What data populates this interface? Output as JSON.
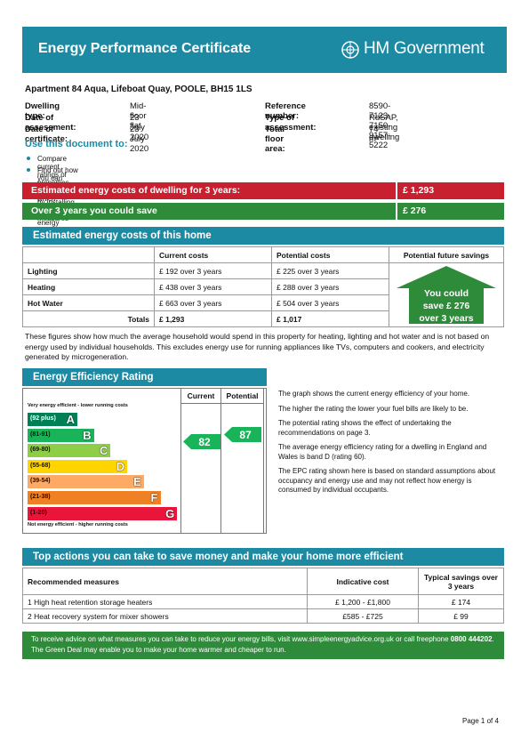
{
  "header": {
    "title": "Energy Performance Certificate",
    "logo": "HM Government"
  },
  "property": {
    "address": "Apartment 84 Aqua, Lifeboat Quay, POOLE, BH15 1LS",
    "details": [
      {
        "label": "Dwelling type:",
        "value": "Mid-floor flat"
      },
      {
        "label": "Date of assessment:",
        "value": "23  July  2020"
      },
      {
        "label": "Date of certificate:",
        "value": "23  July  2020"
      }
    ],
    "details_right": [
      {
        "label": "Reference number:",
        "value": "8590-7123-7150-9157-5222"
      },
      {
        "label": "Type of assessment:",
        "value": "RdSAP, existing dwelling"
      },
      {
        "label": "Total floor area:",
        "value": "74 m²"
      }
    ]
  },
  "use": {
    "heading": "Use this document to:",
    "items": [
      "Compare current ratings of properties to see which properties are more energy efficient",
      "Find out how you can save energy and money by installing improvement measures"
    ]
  },
  "summary": [
    {
      "label": "Estimated energy costs of dwelling for 3 years:",
      "value": "£ 1,293",
      "color": "#c8202f"
    },
    {
      "label": "Over 3 years you could save",
      "value": "£ 276",
      "color": "#2e8b3a"
    }
  ],
  "costs": {
    "heading": "Estimated energy costs of this home",
    "columns": [
      "Current costs",
      "Potential costs",
      "Potential future savings"
    ],
    "rows": [
      [
        "Lighting",
        "£ 192 over 3 years",
        "£ 225 over 3 years"
      ],
      [
        "Heating",
        "£ 438 over 3 years",
        "£ 288 over 3 years"
      ],
      [
        "Hot Water",
        "£ 663 over 3 years",
        "£ 504 over 3 years"
      ]
    ],
    "totals": [
      "Totals",
      "£ 1,293",
      "£ 1,017"
    ],
    "savings_arrow": [
      "You could",
      "save £ 276",
      "over 3 years"
    ],
    "note": "These figures show how much the average household would spend in this property for heating, lighting and hot water and is not based on energy used by individual households. This excludes energy use for running appliances like TVs, computers and cookers, and electricity generated by microgeneration."
  },
  "efficiency": {
    "heading": "Energy Efficiency Rating",
    "columns": [
      "Current",
      "Potential"
    ],
    "top_label": "Very energy efficient - lower running costs",
    "bottom_label": "Not energy efficient - higher running costs",
    "bands": [
      {
        "range": "(92 plus)",
        "letter": "A",
        "color": "#008054"
      },
      {
        "range": "(81-91)",
        "letter": "B",
        "color": "#19b459"
      },
      {
        "range": "(69-80)",
        "letter": "C",
        "color": "#8dce46"
      },
      {
        "range": "(55-68)",
        "letter": "D",
        "color": "#ffd500"
      },
      {
        "range": "(39-54)",
        "letter": "E",
        "color": "#fcaa65"
      },
      {
        "range": "(21-38)",
        "letter": "F",
        "color": "#ef8023"
      },
      {
        "range": "(1-20)",
        "letter": "G",
        "color": "#e9153b"
      }
    ],
    "current": "82",
    "potential": "87",
    "paragraphs": [
      "The graph shows the current energy efficiency of your home.",
      "The higher the rating the lower your fuel bills are likely to be.",
      "The potential rating shows the effect of undertaking the recommendations on page 3.",
      "The average energy efficiency rating for a dwelling in England and Wales is band D (rating 60).",
      "The EPC rating shown here is based on standard assumptions about occupancy and energy use and may not reflect how energy is consumed by individual occupants."
    ]
  },
  "actions": {
    "heading": "Top actions you can take to save money and make your home more efficient",
    "columns": [
      "Recommended measures",
      "Indicative cost",
      "Typical savings over 3 years"
    ],
    "rows": [
      [
        "1  High heat retention storage heaters",
        "£ 1,200 - £1,800",
        "£ 174"
      ],
      [
        "2  Heat recovery system for mixer showers",
        "£585 - £725",
        "£ 99"
      ]
    ]
  },
  "advice": [
    "To receive advice on what measures you can take to reduce your energy bills, visit www.simpleenergyadvice.org.uk or call freephone ",
    "0800 444202",
    ". The Green Deal may enable you to make your home warmer and cheaper to run."
  ],
  "footer": "Page 1 of 4"
}
